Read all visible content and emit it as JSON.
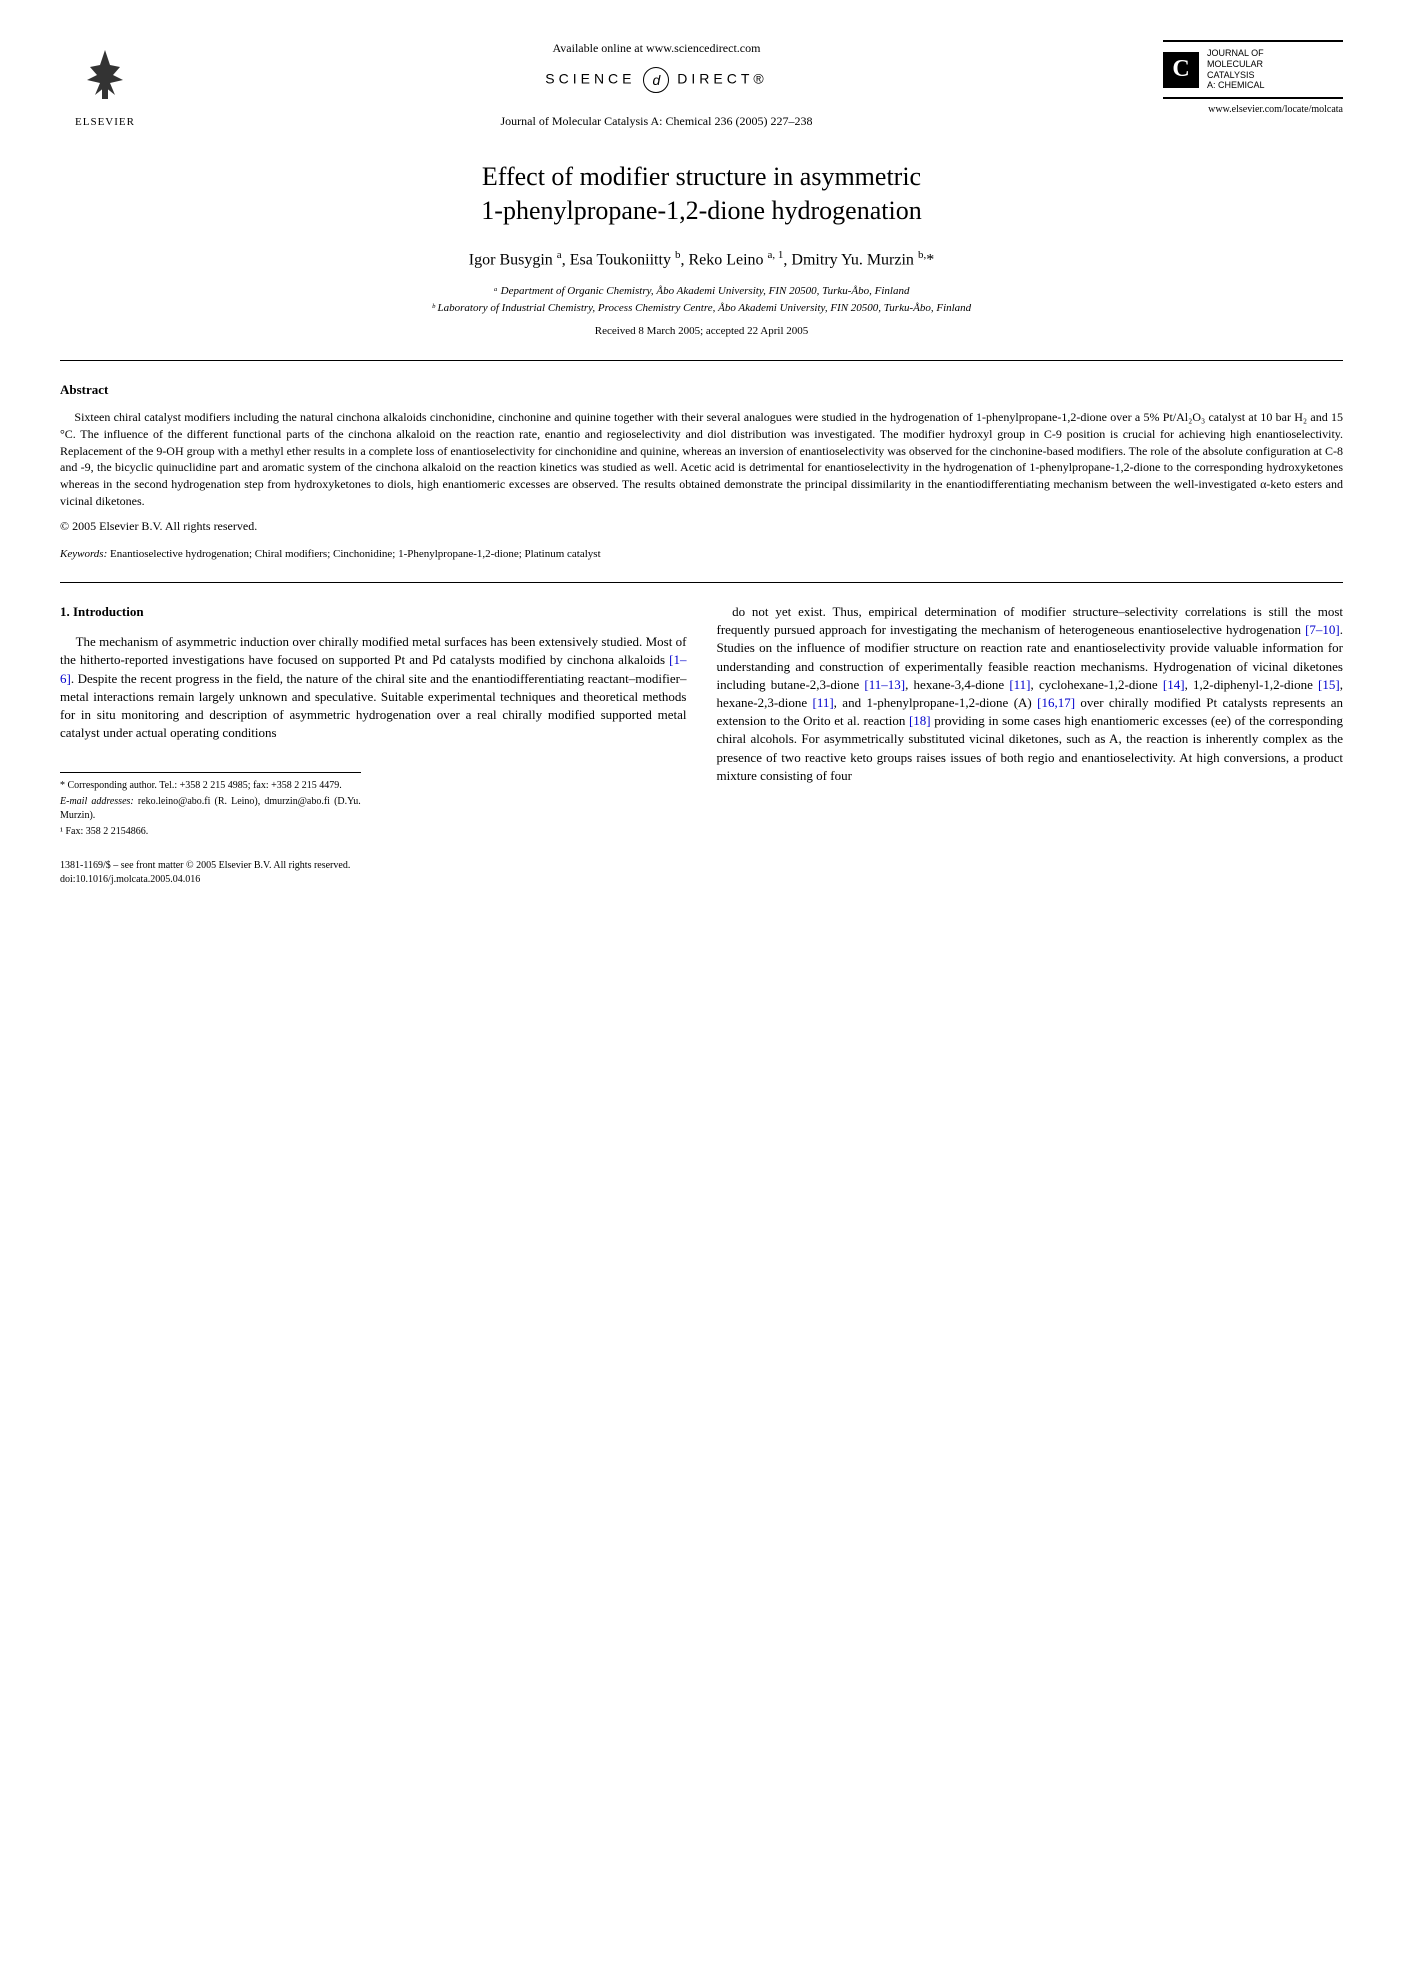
{
  "header": {
    "elsevier_label": "ELSEVIER",
    "available_online": "Available online at www.sciencedirect.com",
    "sciencedirect_left": "SCIENCE",
    "sciencedirect_right": "DIRECT®",
    "journal_ref": "Journal of Molecular Catalysis A: Chemical 236 (2005) 227–238",
    "journal_name_l1": "JOURNAL OF",
    "journal_name_l2": "MOLECULAR",
    "journal_name_l3": "CATALYSIS",
    "journal_name_l4": "A: CHEMICAL",
    "journal_url": "www.elsevier.com/locate/molcata"
  },
  "title_l1": "Effect of modifier structure in asymmetric",
  "title_l2": "1-phenylpropane-1,2-dione hydrogenation",
  "authors_html": "Igor Busygin <sup>a</sup>, Esa Toukoniitty <sup>b</sup>, Reko Leino <sup>a, 1</sup>, Dmitry Yu. Murzin <sup>b,</sup>*",
  "affiliations": {
    "a": "ᵃ Department of Organic Chemistry, Åbo Akademi University, FIN 20500, Turku-Åbo, Finland",
    "b": "ᵇ Laboratory of Industrial Chemistry, Process Chemistry Centre, Åbo Akademi University, FIN 20500, Turku-Åbo, Finland"
  },
  "dates": "Received 8 March 2005; accepted 22 April 2005",
  "abstract": {
    "heading": "Abstract",
    "body": "Sixteen chiral catalyst modifiers including the natural cinchona alkaloids cinchonidine, cinchonine and quinine together with their several analogues were studied in the hydrogenation of 1-phenylpropane-1,2-dione over a 5% Pt/Al₂O₃ catalyst at 10 bar H₂ and 15 °C. The influence of the different functional parts of the cinchona alkaloid on the reaction rate, enantio and regioselectivity and diol distribution was investigated. The modifier hydroxyl group in C-9 position is crucial for achieving high enantioselectivity. Replacement of the 9-OH group with a methyl ether results in a complete loss of enantioselectivity for cinchonidine and quinine, whereas an inversion of enantioselectivity was observed for the cinchonine-based modifiers. The role of the absolute configuration at C-8 and -9, the bicyclic quinuclidine part and aromatic system of the cinchona alkaloid on the reaction kinetics was studied as well. Acetic acid is detrimental for enantioselectivity in the hydrogenation of 1-phenylpropane-1,2-dione to the corresponding hydroxyketones whereas in the second hydrogenation step from hydroxyketones to diols, high enantiomeric excesses are observed. The results obtained demonstrate the principal dissimilarity in the enantiodifferentiating mechanism between the well-investigated α-keto esters and vicinal diketones.",
    "copyright": "© 2005 Elsevier B.V. All rights reserved.",
    "keywords_label": "Keywords:",
    "keywords": "Enantioselective hydrogenation; Chiral modifiers; Cinchonidine; 1-Phenylpropane-1,2-dione; Platinum catalyst"
  },
  "section1": {
    "heading": "1. Introduction",
    "col1": "The mechanism of asymmetric induction over chirally modified metal surfaces has been extensively studied. Most of the hitherto-reported investigations have focused on supported Pt and Pd catalysts modified by cinchona alkaloids [1–6]. Despite the recent progress in the field, the nature of the chiral site and the enantiodifferentiating reactant–modifier–metal interactions remain largely unknown and speculative. Suitable experimental techniques and theoretical methods for in situ monitoring and description of asymmetric hydrogenation over a real chirally modified supported metal catalyst under actual operating conditions",
    "col2": "do not yet exist. Thus, empirical determination of modifier structure–selectivity correlations is still the most frequently pursued approach for investigating the mechanism of heterogeneous enantioselective hydrogenation [7–10]. Studies on the influence of modifier structure on reaction rate and enantioselectivity provide valuable information for understanding and construction of experimentally feasible reaction mechanisms. Hydrogenation of vicinal diketones including butane-2,3-dione [11–13], hexane-3,4-dione [11], cyclohexane-1,2-dione [14], 1,2-diphenyl-1,2-dione [15], hexane-2,3-dione [11], and 1-phenylpropane-1,2-dione (A) [16,17] over chirally modified Pt catalysts represents an extension to the Orito et al. reaction [18] providing in some cases high enantiomeric excesses (ee) of the corresponding chiral alcohols. For asymmetrically substituted vicinal diketones, such as A, the reaction is inherently complex as the presence of two reactive keto groups raises issues of both regio and enantioselectivity. At high conversions, a product mixture consisting of four"
  },
  "footnotes": {
    "corresponding": "* Corresponding author. Tel.: +358 2 215 4985; fax: +358 2 215 4479.",
    "email_label": "E-mail addresses:",
    "emails": "reko.leino@abo.fi (R. Leino), dmurzin@abo.fi (D.Yu. Murzin).",
    "fax": "¹ Fax: 358 2 2154866."
  },
  "front_matter": {
    "line1": "1381-1169/$ – see front matter © 2005 Elsevier B.V. All rights reserved.",
    "line2": "doi:10.1016/j.molcata.2005.04.016"
  }
}
